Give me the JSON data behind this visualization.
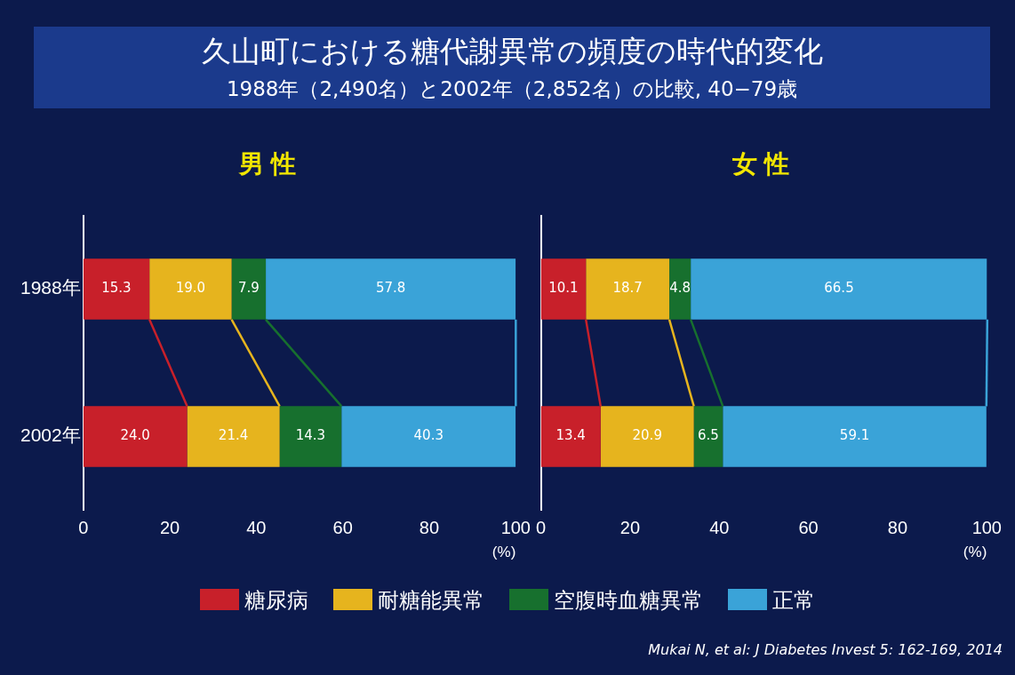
{
  "chart_data": [
    {
      "type": "bar",
      "title": "男 性",
      "orientation": "horizontal",
      "stacked": true,
      "legend": "bottom",
      "grid": false,
      "categories": [
        "1988年",
        "2002年"
      ],
      "xlim": [
        0,
        100
      ],
      "xticks": [
        0,
        20,
        40,
        60,
        80,
        100
      ],
      "xlabel": "(%)",
      "series": [
        {
          "name": "糖尿病",
          "color": "#c8202a",
          "values": [
            15.3,
            24.0
          ],
          "value_labels": [
            "15.3",
            "24.0"
          ]
        },
        {
          "name": "耐糖能異常",
          "color": "#e6b41e",
          "values": [
            19.0,
            21.4
          ],
          "value_labels": [
            "19.0",
            "21.4"
          ]
        },
        {
          "name": "空腹時血糖異常",
          "color": "#17702e",
          "values": [
            7.9,
            14.3
          ],
          "value_labels": [
            "7.9",
            "14.3"
          ]
        },
        {
          "name": "正常",
          "color": "#3aa3d8",
          "values": [
            57.8,
            40.3
          ],
          "value_labels": [
            "57.8",
            "40.3"
          ]
        }
      ],
      "annotations": [
        "久山町における糖代謝異常の頻度の時代的変化",
        "1988年（2,490名）と2002年（2,852名）の比較, 40−79歳",
        "Mukai N, et al:  J Diabetes Invest 5: 162-169, 2014"
      ]
    },
    {
      "type": "bar",
      "title": "女 性",
      "orientation": "horizontal",
      "stacked": true,
      "grid": false,
      "categories": [
        null,
        null
      ],
      "xlim": [
        0,
        100
      ],
      "xticks": [
        0,
        20,
        40,
        60,
        80,
        100
      ],
      "xlabel": "(%)",
      "tick_labels": "x",
      "series": [
        {
          "color": "#c8202a",
          "values": [
            10.1,
            13.4
          ],
          "value_labels": [
            "10.1",
            "13.4"
          ]
        },
        {
          "color": "#e6b41e",
          "values": [
            18.7,
            20.9
          ],
          "value_labels": [
            "18.7",
            "20.9"
          ]
        },
        {
          "color": "#17702e",
          "values": [
            4.8,
            6.5
          ],
          "value_labels": [
            "4.8",
            "6.5"
          ]
        },
        {
          "color": "#3aa3d8",
          "values": [
            66.5,
            59.1
          ],
          "value_labels": [
            "66.5",
            "59.1"
          ]
        }
      ]
    }
  ]
}
